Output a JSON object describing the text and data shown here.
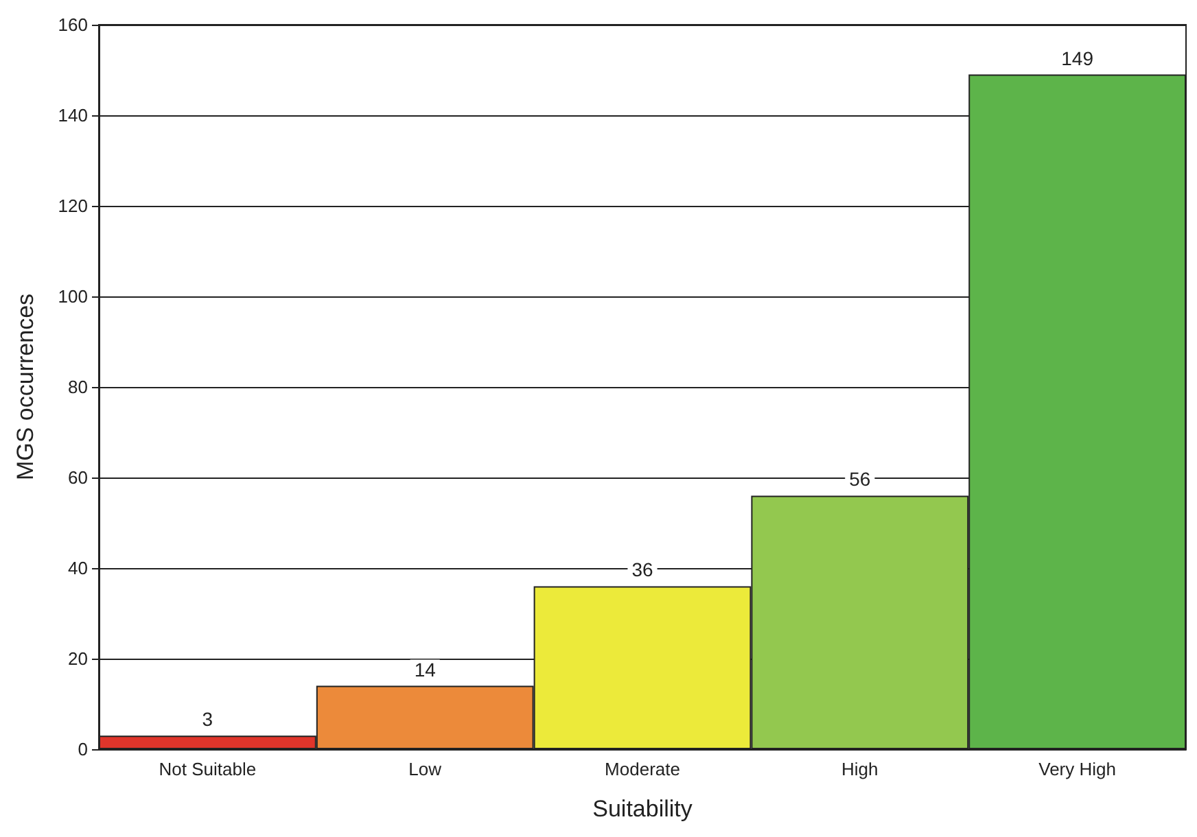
{
  "chart_data": {
    "type": "bar",
    "xlabel": "Suitability",
    "ylabel": "MGS occurrences",
    "categories": [
      "Not Suitable",
      "Low",
      "Moderate",
      "High",
      "Very High"
    ],
    "values": [
      3,
      14,
      36,
      56,
      149
    ],
    "colors": [
      "#e0352b",
      "#ec8a3a",
      "#ecea3a",
      "#93c84f",
      "#5db44a"
    ],
    "ylim": [
      0,
      160
    ],
    "yticks": [
      0,
      20,
      40,
      60,
      80,
      100,
      120,
      140,
      160
    ],
    "grid": "y",
    "data_labels": true
  }
}
